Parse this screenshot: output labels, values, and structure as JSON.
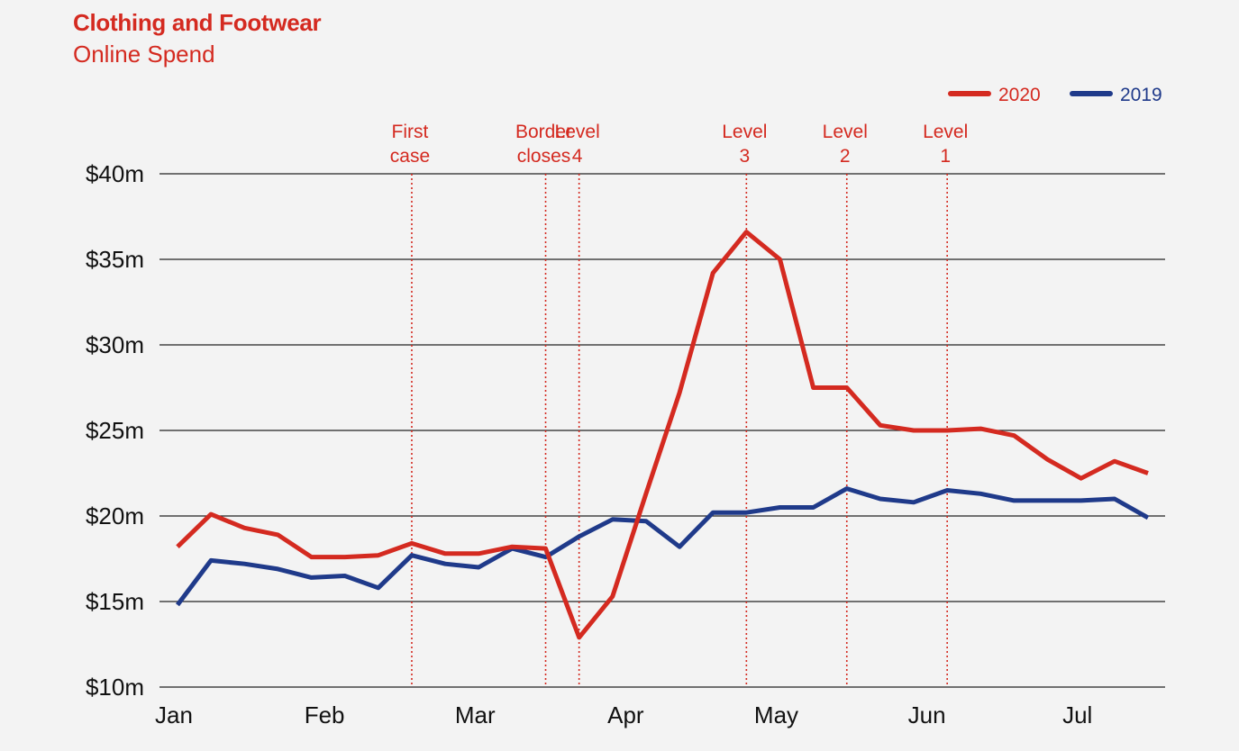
{
  "title": "Clothing and Footwear",
  "subtitle": "Online Spend",
  "colors": {
    "accent": "#d42a20",
    "series_2020": "#d42a20",
    "series_2019": "#1f3a8a",
    "gridline": "#222222",
    "background": "#f3f3f3"
  },
  "chart_data": {
    "type": "line",
    "title": "Clothing and Footwear",
    "subtitle": "Online Spend",
    "xlabel": "",
    "ylabel": "",
    "ylim": [
      10,
      40
    ],
    "y_ticks": [
      {
        "value": 40,
        "label": "$40m"
      },
      {
        "value": 35,
        "label": "$35m"
      },
      {
        "value": 30,
        "label": "$30m"
      },
      {
        "value": 25,
        "label": "$25m"
      },
      {
        "value": 20,
        "label": "$20m"
      },
      {
        "value": 15,
        "label": "$15m"
      },
      {
        "value": 10,
        "label": "$10m"
      }
    ],
    "x_ticks": [
      {
        "week": 0,
        "label": "Jan"
      },
      {
        "week": 4.5,
        "label": "Feb"
      },
      {
        "week": 9,
        "label": "Mar"
      },
      {
        "week": 13.5,
        "label": "Apr"
      },
      {
        "week": 18,
        "label": "May"
      },
      {
        "week": 22.5,
        "label": "Jun"
      },
      {
        "week": 27,
        "label": "Jul"
      }
    ],
    "week_count": 30,
    "grid": true,
    "legend": "top-right",
    "series": [
      {
        "name": "2020",
        "color": "#d42a20",
        "values": [
          18.2,
          20.1,
          19.3,
          18.9,
          17.6,
          17.6,
          17.7,
          18.4,
          17.8,
          17.8,
          18.2,
          18.1,
          12.9,
          15.3,
          21.3,
          27.2,
          34.2,
          36.6,
          35.0,
          27.5,
          27.5,
          25.3,
          25.0,
          25.0,
          25.1,
          24.7,
          23.3,
          22.2,
          23.2,
          22.5
        ],
        "dates_2020": [
          1,
          8,
          15,
          22,
          29,
          36,
          43,
          50,
          57,
          64,
          71,
          78,
          85,
          92,
          99,
          106,
          113,
          120,
          127,
          134,
          141,
          148,
          155,
          162,
          169,
          176,
          183,
          190,
          197,
          204
        ]
      },
      {
        "name": "2019",
        "color": "#1f3a8a",
        "values": [
          14.8,
          17.4,
          17.2,
          16.9,
          16.4,
          16.5,
          15.8,
          17.7,
          17.2,
          17.0,
          18.1,
          17.6,
          18.8,
          19.8,
          19.7,
          18.2,
          20.2,
          20.2,
          20.5,
          20.5,
          21.6,
          21.0,
          20.8,
          21.5,
          21.3,
          20.9,
          20.9,
          20.9,
          21.0,
          19.9
        ]
      }
    ],
    "events": [
      {
        "lines": [
          "First",
          "case"
        ],
        "week": 7
      },
      {
        "lines": [
          "Border",
          "closes"
        ],
        "week": 11
      },
      {
        "lines": [
          "Level",
          "4"
        ],
        "week": 12
      },
      {
        "lines": [
          "Level",
          "3"
        ],
        "week": 17
      },
      {
        "lines": [
          "Level",
          "2"
        ],
        "week": 20
      },
      {
        "lines": [
          "Level",
          "1"
        ],
        "week": 23
      }
    ]
  }
}
